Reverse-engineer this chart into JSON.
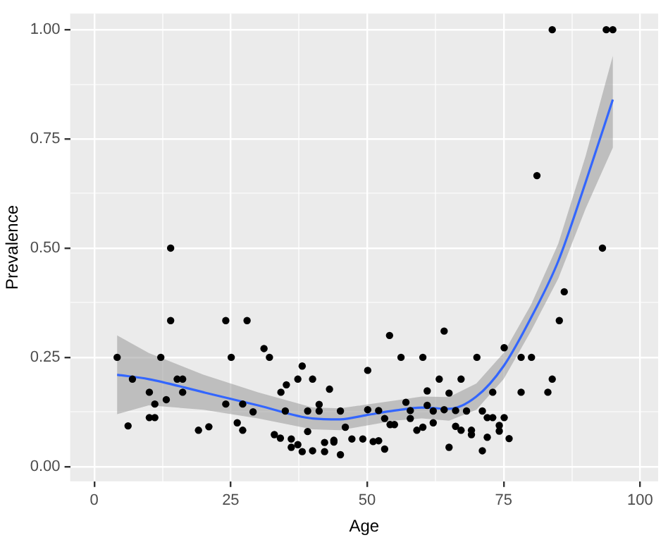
{
  "chart_data": {
    "type": "scatter",
    "xlabel": "Age",
    "ylabel": "Prevalence",
    "xlim": [
      -4.4,
      103.3
    ],
    "ylim": [
      -0.034,
      1.037
    ],
    "xticks": [
      0,
      {
        "value": 12.5,
        "label": null
      },
      25,
      {
        "value": 37.5,
        "label": null
      },
      50,
      {
        "value": 62.5,
        "label": null
      },
      75,
      {
        "value": 87.5,
        "label": null
      },
      100
    ],
    "yticks": [
      "0.00",
      {
        "value": 0.125,
        "label": null
      },
      {
        "value": 0.25,
        "label": "0.25"
      },
      {
        "value": 0.375,
        "label": null
      },
      {
        "value": 0.5,
        "label": "0.50"
      },
      {
        "value": 0.625,
        "label": null
      },
      {
        "value": 0.75,
        "label": "0.75"
      },
      {
        "value": 0.875,
        "label": null
      },
      {
        "value": 1,
        "label": "1.00"
      }
    ],
    "grid": true,
    "legend": false,
    "series": [
      {
        "color": "#000000",
        "marker": "circle",
        "x": [
          4.2,
          6.2,
          7.0,
          10.1,
          10.1,
          11.1,
          11.1,
          12.2,
          13.2,
          14.0,
          14.0,
          15.2,
          16.2,
          16.2,
          19.1,
          21.0,
          24.1,
          24.1,
          25.1,
          26.2,
          27.2,
          27.2,
          28.0,
          29.1,
          31.1,
          32.1,
          33.0,
          34.1,
          34.2,
          35.0,
          35.2,
          36.1,
          36.1,
          37.3,
          37.3,
          38.1,
          38.1,
          39.1,
          39.1,
          40.0,
          40.0,
          41.2,
          41.2,
          42.2,
          42.2,
          43.1,
          43.9,
          43.9,
          45.1,
          45.1,
          46.0,
          47.2,
          49.2,
          50.1,
          50.1,
          51.1,
          52.1,
          52.1,
          53.2,
          53.2,
          54.1,
          54.2,
          55.0,
          56.2,
          57.1,
          57.9,
          57.9,
          59.1,
          60.2,
          60.2,
          61.0,
          61.0,
          62.1,
          62.1,
          63.2,
          64.1,
          64.1,
          65.0,
          65.0,
          66.2,
          66.2,
          67.2,
          67.2,
          68.2,
          69.1,
          69.1,
          70.1,
          71.1,
          71.1,
          72.0,
          72.0,
          73.0,
          73.0,
          74.2,
          74.2,
          75.1,
          75.1,
          76.0,
          78.2,
          78.2,
          80.1,
          81.1,
          83.1,
          83.9,
          83.9,
          85.2,
          86.1,
          93.1,
          93.8,
          95.0
        ],
        "values": [
          0.25,
          0.093,
          0.2,
          0.17,
          0.112,
          0.112,
          0.143,
          0.25,
          0.153,
          0.5,
          0.334,
          0.2,
          0.2,
          0.17,
          0.083,
          0.091,
          0.334,
          0.143,
          0.25,
          0.1,
          0.143,
          0.083,
          0.334,
          0.125,
          0.27,
          0.25,
          0.073,
          0.065,
          0.17,
          0.127,
          0.187,
          0.063,
          0.044,
          0.05,
          0.2,
          0.034,
          0.23,
          0.127,
          0.08,
          0.2,
          0.036,
          0.142,
          0.127,
          0.055,
          0.034,
          0.177,
          0.06,
          0.056,
          0.027,
          0.127,
          0.09,
          0.063,
          0.063,
          0.13,
          0.22,
          0.057,
          0.128,
          0.059,
          0.11,
          0.04,
          0.3,
          0.096,
          0.096,
          0.25,
          0.147,
          0.128,
          0.11,
          0.083,
          0.09,
          0.25,
          0.173,
          0.14,
          0.127,
          0.1,
          0.2,
          0.31,
          0.13,
          0.168,
          0.044,
          0.128,
          0.092,
          0.2,
          0.083,
          0.127,
          0.083,
          0.073,
          0.25,
          0.127,
          0.036,
          0.112,
          0.067,
          0.112,
          0.17,
          0.094,
          0.081,
          0.112,
          0.272,
          0.064,
          0.25,
          0.17,
          0.25,
          0.666,
          0.17,
          1.0,
          0.2,
          0.334,
          0.4,
          0.5,
          1.0,
          1.0
        ]
      },
      {
        "type": "line",
        "color": "#3366ff",
        "marker": "none",
        "line_style": "solid",
        "x": [
          4.2,
          10,
          20,
          30,
          40,
          45,
          50,
          55,
          60,
          65,
          70,
          75,
          80,
          85,
          90,
          95
        ],
        "values": [
          0.21,
          0.2,
          0.17,
          0.14,
          0.11,
          0.108,
          0.118,
          0.128,
          0.135,
          0.132,
          0.16,
          0.23,
          0.34,
          0.47,
          0.65,
          0.84
        ],
        "lower": [
          0.12,
          0.14,
          0.13,
          0.11,
          0.085,
          0.083,
          0.094,
          0.105,
          0.11,
          0.105,
          0.13,
          0.2,
          0.31,
          0.43,
          0.59,
          0.73
        ],
        "upper": [
          0.3,
          0.26,
          0.21,
          0.17,
          0.135,
          0.133,
          0.142,
          0.151,
          0.16,
          0.159,
          0.19,
          0.26,
          0.37,
          0.51,
          0.71,
          0.94
        ]
      }
    ]
  }
}
